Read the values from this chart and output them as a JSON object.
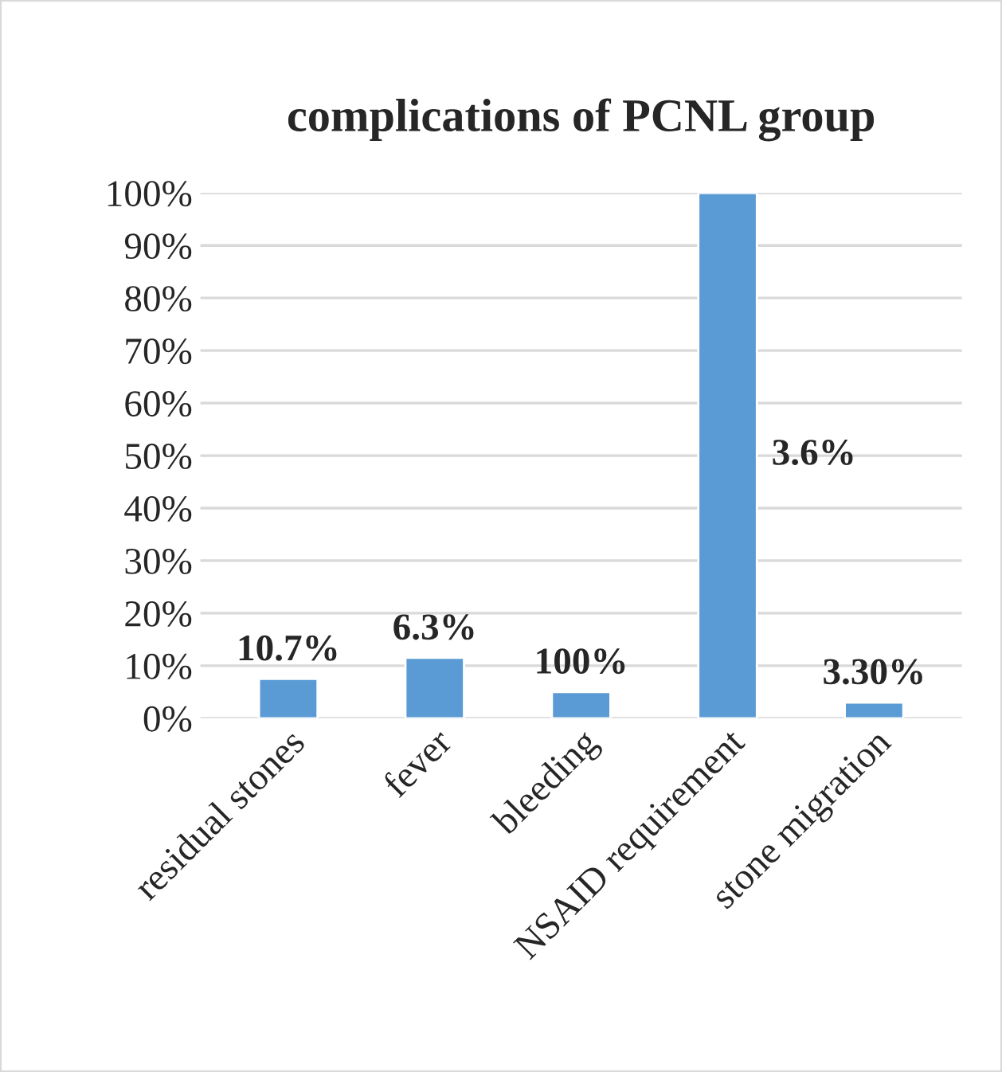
{
  "chart_data": {
    "type": "bar",
    "title": "complications of PCNL group",
    "categories": [
      "residual stones",
      "fever",
      "bleeding",
      "NSAID requirement",
      "stone migration"
    ],
    "values": [
      7.5,
      11.5,
      5,
      100,
      3
    ],
    "annotations": [
      "10.7%",
      "6.3%",
      "100%",
      "3.6%",
      "3.30%"
    ],
    "color": "#5b9bd5",
    "ylim": [
      0,
      100
    ],
    "yticks": [
      {
        "value": 0,
        "label": "0%"
      },
      {
        "value": 10,
        "label": "10%"
      },
      {
        "value": 20,
        "label": "20%"
      },
      {
        "value": 30,
        "label": "30%"
      },
      {
        "value": 40,
        "label": "40%"
      },
      {
        "value": 50,
        "label": "50%"
      },
      {
        "value": 60,
        "label": "60%"
      },
      {
        "value": 70,
        "label": "70%"
      },
      {
        "value": 80,
        "label": "80%"
      },
      {
        "value": 90,
        "label": "90%"
      },
      {
        "value": 100,
        "label": "100%"
      }
    ],
    "grid": "y",
    "legend": false
  }
}
